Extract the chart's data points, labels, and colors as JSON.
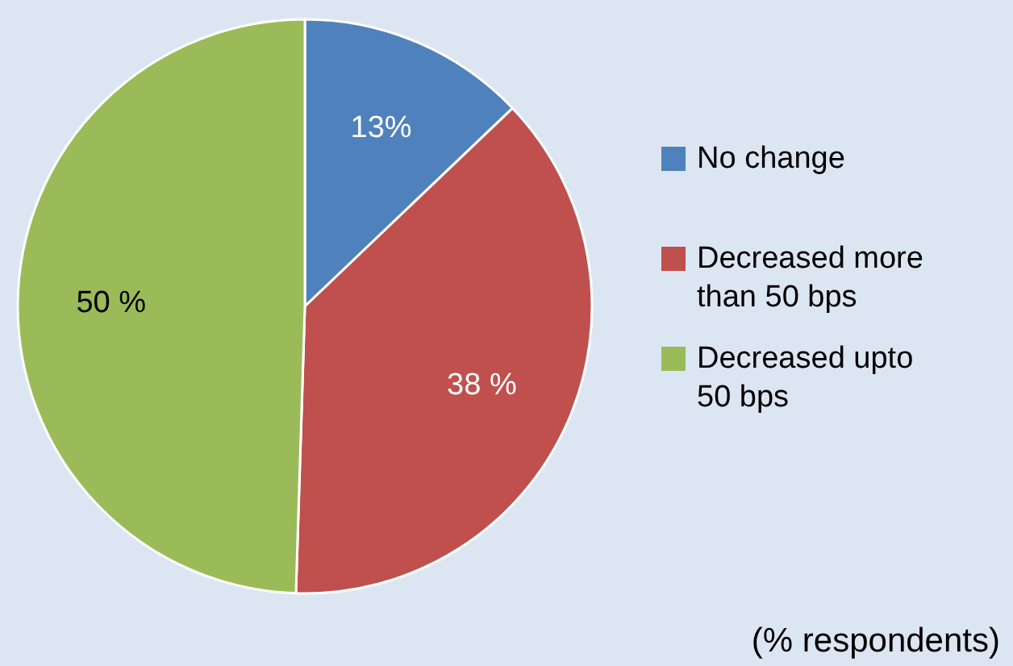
{
  "chart_data": {
    "type": "pie",
    "categories": [
      "No change",
      "Decreased more than 50 bps",
      "Decreased upto 50 bps"
    ],
    "values": [
      13,
      38,
      50
    ],
    "colors": [
      "#4f81bd",
      "#c0504d",
      "#9bbb59"
    ],
    "value_labels": [
      "13%",
      "38 %",
      "50 %"
    ],
    "legend": "right",
    "annotations": [
      "(% respondents)"
    ]
  }
}
